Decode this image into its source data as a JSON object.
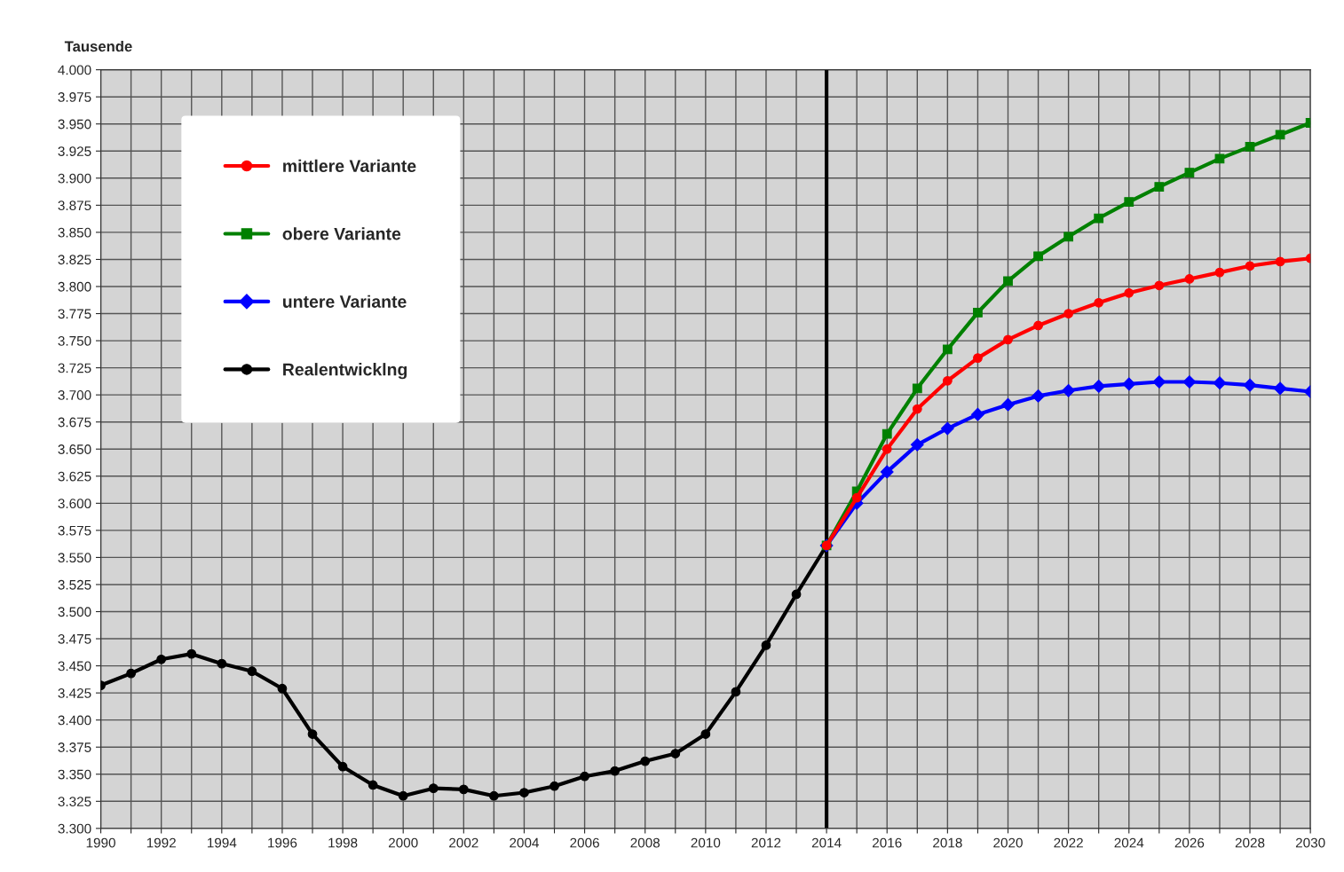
{
  "chart_data": {
    "type": "line",
    "ylabel": "Tausende",
    "xlim": [
      1990,
      2030
    ],
    "ylim": [
      3300,
      4000
    ],
    "xticks": [
      1990,
      {
        "value": 1991,
        "label": null
      },
      1992,
      {
        "value": 1993,
        "label": null
      },
      1994,
      {
        "value": 1995,
        "label": null
      },
      1996,
      {
        "value": 1997,
        "label": null
      },
      1998,
      {
        "value": 1999,
        "label": null
      },
      2000,
      {
        "value": 2001,
        "label": null
      },
      2002,
      {
        "value": 2003,
        "label": null
      },
      2004,
      {
        "value": 2005,
        "label": null
      },
      2006,
      {
        "value": 2007,
        "label": null
      },
      2008,
      {
        "value": 2009,
        "label": null
      },
      2010,
      {
        "value": 2011,
        "label": null
      },
      2012,
      {
        "value": 2013,
        "label": null
      },
      2014,
      {
        "value": 2015,
        "label": null
      },
      2016,
      {
        "value": 2017,
        "label": null
      },
      2018,
      {
        "value": 2019,
        "label": null
      },
      2020,
      {
        "value": 2021,
        "label": null
      },
      2022,
      {
        "value": 2023,
        "label": null
      },
      2024,
      {
        "value": 2025,
        "label": null
      },
      2026,
      {
        "value": 2027,
        "label": null
      },
      2028,
      {
        "value": 2029,
        "label": null
      },
      2030
    ],
    "yticks": [
      {
        "value": 3300,
        "label": "3.300"
      },
      {
        "value": 3325,
        "label": "3.325"
      },
      {
        "value": 3350,
        "label": "3.350"
      },
      {
        "value": 3375,
        "label": "3.375"
      },
      {
        "value": 3400,
        "label": "3.400"
      },
      {
        "value": 3425,
        "label": "3.425"
      },
      {
        "value": 3450,
        "label": "3.450"
      },
      {
        "value": 3475,
        "label": "3.475"
      },
      {
        "value": 3500,
        "label": "3.500"
      },
      {
        "value": 3525,
        "label": "3.525"
      },
      {
        "value": 3550,
        "label": "3.550"
      },
      {
        "value": 3575,
        "label": "3.575"
      },
      {
        "value": 3600,
        "label": "3.600"
      },
      {
        "value": 3625,
        "label": "3.625"
      },
      {
        "value": 3650,
        "label": "3.650"
      },
      {
        "value": 3675,
        "label": "3.675"
      },
      {
        "value": 3700,
        "label": "3.700"
      },
      {
        "value": 3725,
        "label": "3.725"
      },
      {
        "value": 3750,
        "label": "3.750"
      },
      {
        "value": 3775,
        "label": "3.775"
      },
      {
        "value": 3800,
        "label": "3.800"
      },
      {
        "value": 3825,
        "label": "3.825"
      },
      {
        "value": 3850,
        "label": "3.850"
      },
      {
        "value": 3875,
        "label": "3.875"
      },
      {
        "value": 3900,
        "label": "3.900"
      },
      {
        "value": 3925,
        "label": "3.925"
      },
      {
        "value": 3950,
        "label": "3.950"
      },
      {
        "value": 3975,
        "label": "3.975"
      },
      {
        "value": 4000,
        "label": "4.000"
      }
    ],
    "grid": true,
    "legend": "top left",
    "ref_lines": [
      {
        "axis": "x",
        "value": 2014,
        "color": "#000000"
      }
    ],
    "series": [
      {
        "name": "mittlere Variante",
        "color": "#ff0000",
        "marker": "circle",
        "x": [
          2014,
          2015,
          2016,
          2017,
          2018,
          2019,
          2020,
          2021,
          2022,
          2023,
          2024,
          2025,
          2026,
          2027,
          2028,
          2029,
          2030
        ],
        "values": [
          3561,
          3605,
          3650,
          3687,
          3713,
          3734,
          3751,
          3764,
          3775,
          3785,
          3794,
          3801,
          3807,
          3813,
          3819,
          3823,
          3826
        ]
      },
      {
        "name": "obere Variante",
        "color": "#008000",
        "marker": "square",
        "x": [
          2014,
          2015,
          2016,
          2017,
          2018,
          2019,
          2020,
          2021,
          2022,
          2023,
          2024,
          2025,
          2026,
          2027,
          2028,
          2029,
          2030
        ],
        "values": [
          3561,
          3611,
          3664,
          3706,
          3742,
          3776,
          3805,
          3828,
          3846,
          3863,
          3878,
          3892,
          3905,
          3918,
          3929,
          3940,
          3951
        ]
      },
      {
        "name": "untere Variante",
        "color": "#0000ff",
        "marker": "diamond",
        "x": [
          2014,
          2015,
          2016,
          2017,
          2018,
          2019,
          2020,
          2021,
          2022,
          2023,
          2024,
          2025,
          2026,
          2027,
          2028,
          2029,
          2030
        ],
        "values": [
          3561,
          3600,
          3629,
          3654,
          3669,
          3682,
          3691,
          3699,
          3704,
          3708,
          3710,
          3712,
          3712,
          3711,
          3709,
          3706,
          3703
        ]
      },
      {
        "name": "Realentwicklng",
        "color": "#000000",
        "marker": "circle",
        "x": [
          1990,
          1991,
          1992,
          1993,
          1994,
          1995,
          1996,
          1997,
          1998,
          1999,
          2000,
          2001,
          2002,
          2003,
          2004,
          2005,
          2006,
          2007,
          2008,
          2009,
          2010,
          2011,
          2012,
          2013,
          2014
        ],
        "values": [
          3432,
          3443,
          3456,
          3461,
          3452,
          3445,
          3429,
          3387,
          3357,
          3340,
          3330,
          3337,
          3336,
          3330,
          3333,
          3339,
          3348,
          3353,
          3362,
          3369,
          3387,
          3426,
          3469,
          3516,
          3561
        ]
      }
    ]
  }
}
